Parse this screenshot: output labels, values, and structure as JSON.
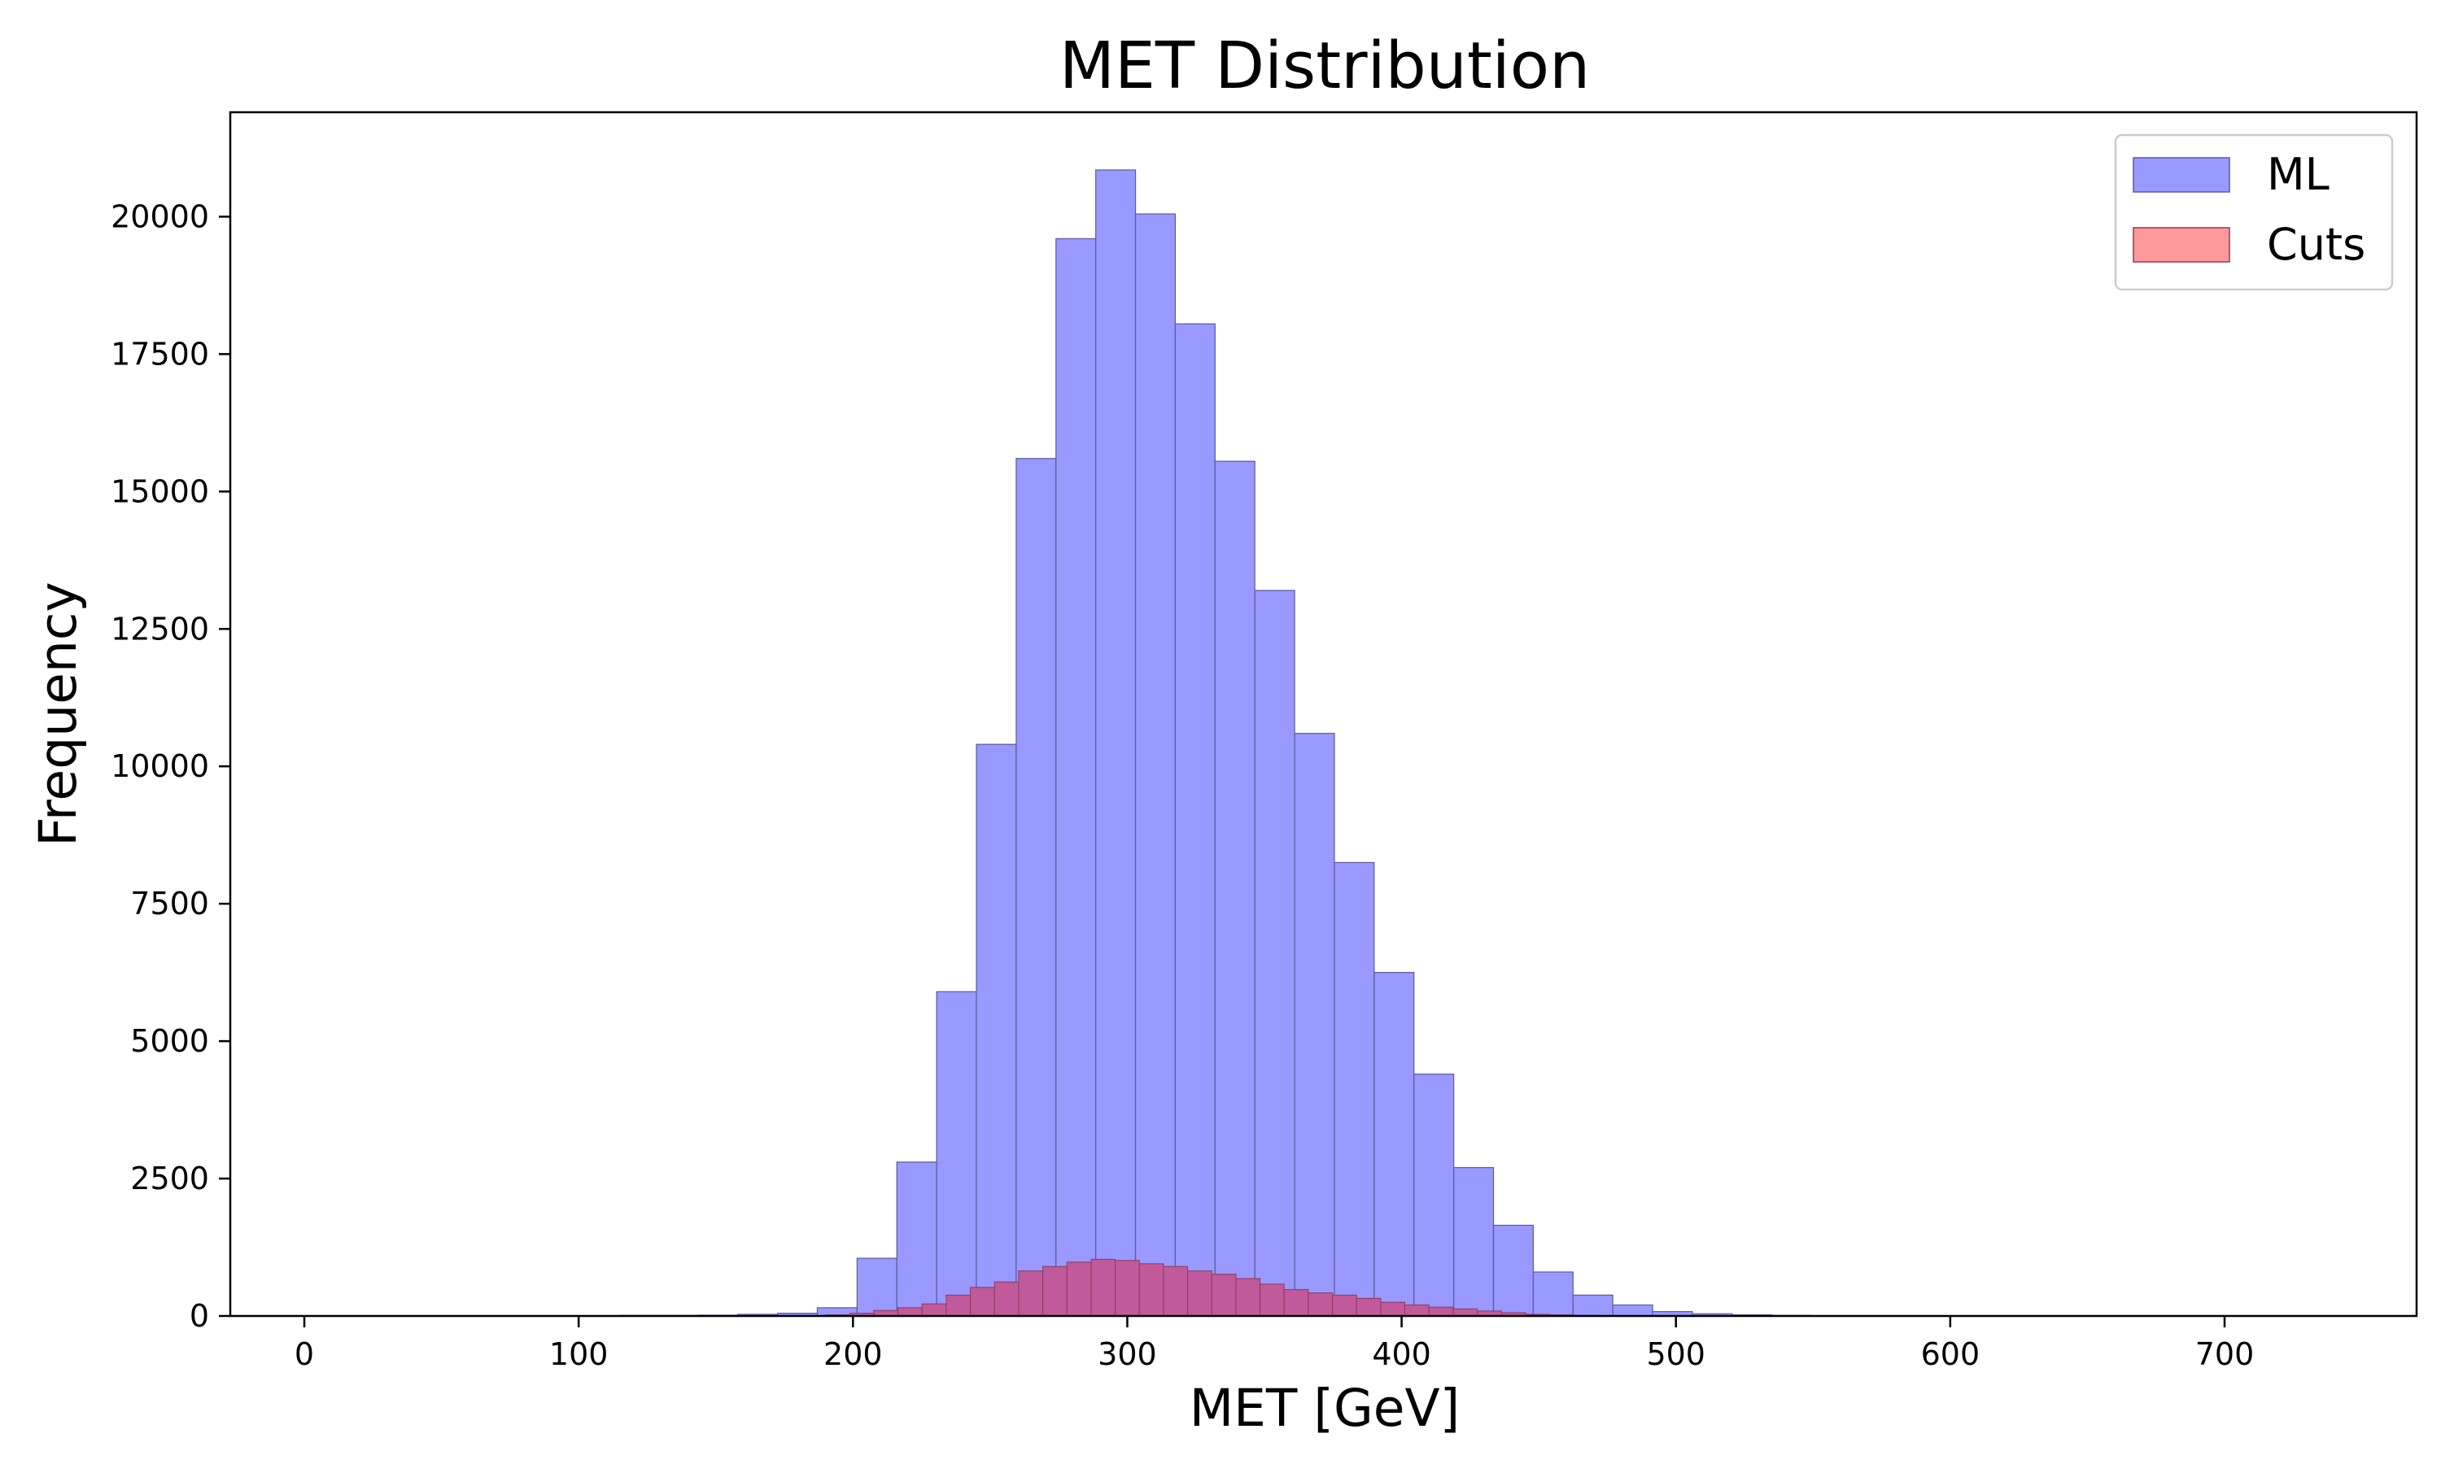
{
  "chart_data": {
    "type": "histogram",
    "title": "MET Distribution",
    "xlabel": "MET [GeV]",
    "ylabel": "Frequency",
    "xlim": [
      -27,
      770
    ],
    "ylim": [
      0,
      21900
    ],
    "xticks": [
      0,
      100,
      200,
      300,
      400,
      500,
      600,
      700
    ],
    "yticks": [
      0,
      2500,
      5000,
      7500,
      10000,
      12500,
      15000,
      17500,
      20000
    ],
    "legend_position": "top-right",
    "grid": false,
    "series": [
      {
        "name": "ML",
        "color": "#9999ff",
        "edge_color": "#5a5aa0",
        "bin_start": 100,
        "bin_width": 14.5,
        "values": [
          5,
          10,
          10,
          15,
          30,
          50,
          150,
          1050,
          2800,
          5900,
          10400,
          15600,
          19600,
          20850,
          20050,
          18050,
          15550,
          13200,
          10600,
          8250,
          6250,
          4400,
          2700,
          1650,
          800,
          380,
          200,
          80,
          40,
          20,
          10,
          5
        ]
      },
      {
        "name": "Cuts",
        "color": "#ff9999",
        "overlap_color": "#c05a9a",
        "edge_color": "#8a3a5a",
        "bin_start": 190,
        "bin_width": 8.8,
        "values": [
          20,
          50,
          100,
          150,
          220,
          380,
          520,
          620,
          820,
          900,
          980,
          1030,
          1010,
          950,
          900,
          820,
          760,
          680,
          580,
          480,
          420,
          380,
          320,
          250,
          200,
          160,
          130,
          90,
          60,
          30,
          20,
          10,
          5
        ]
      }
    ]
  }
}
